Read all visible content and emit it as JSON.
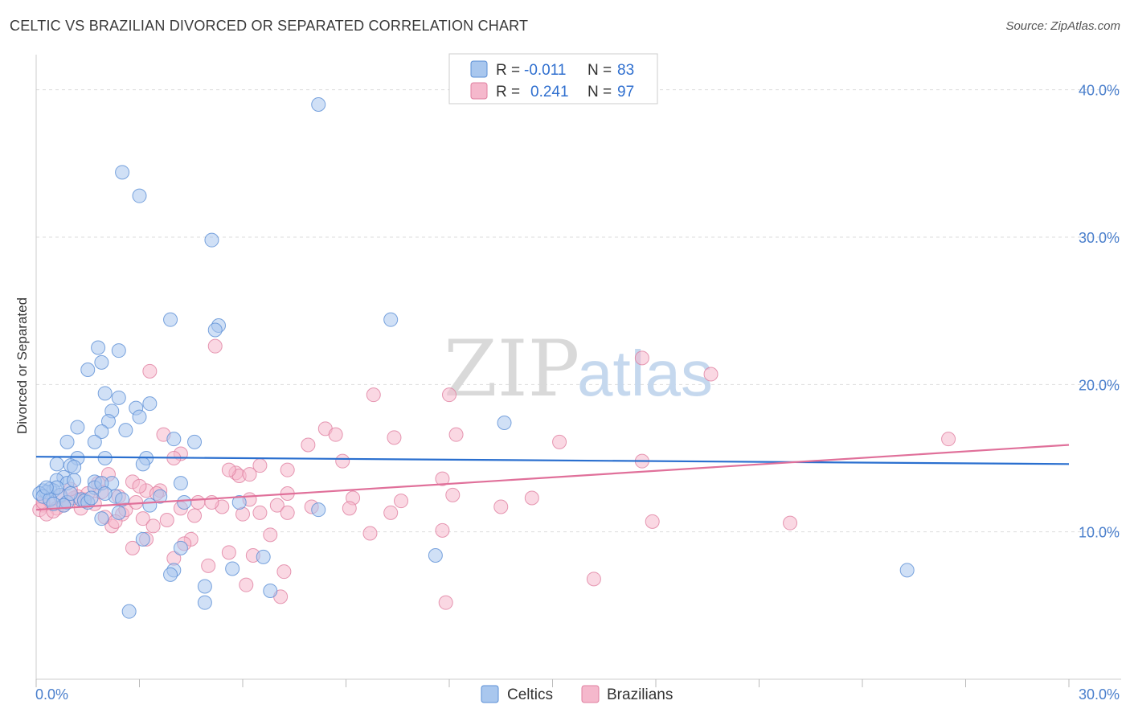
{
  "title": "CELTIC VS BRAZILIAN DIVORCED OR SEPARATED CORRELATION CHART",
  "source": "Source: ZipAtlas.com",
  "watermark": {
    "zip": "ZIP",
    "atlas": "atlas"
  },
  "colors": {
    "celtics_fill": "#a9c7ee",
    "celtics_stroke": "#5b8fd6",
    "celtics_line": "#2a6fcf",
    "brazilians_fill": "#f5b8cc",
    "brazilians_stroke": "#e07fa0",
    "brazilians_line": "#e0709a",
    "tick_label": "#4a7fcc",
    "grid": "#dddddd"
  },
  "stats_legend": {
    "rows": [
      {
        "r_label": "R =",
        "r_value": "-0.011",
        "n_label": "N =",
        "n_value": "83"
      },
      {
        "r_label": "R =",
        "r_value": "0.241",
        "n_label": "N =",
        "n_value": "97"
      }
    ]
  },
  "chart_data": {
    "type": "scatter",
    "title": "CELTIC VS BRAZILIAN DIVORCED OR SEPARATED CORRELATION CHART",
    "xlabel": "",
    "ylabel": "Divorced or Separated",
    "xlim": [
      0,
      30
    ],
    "ylim": [
      0,
      42
    ],
    "x_tick_labels": [
      "0.0%",
      "30.0%"
    ],
    "y_ticks": [
      10,
      20,
      30,
      40
    ],
    "y_tick_labels": [
      "10.0%",
      "20.0%",
      "30.0%",
      "40.0%"
    ],
    "grid": "horizontal dashed",
    "legend": "bottom-center",
    "series": [
      {
        "name": "Celtics",
        "trend": [
          [
            0,
            15.1
          ],
          [
            30,
            14.6
          ]
        ],
        "points": [
          [
            8.2,
            39.0
          ],
          [
            2.5,
            34.4
          ],
          [
            3.0,
            32.8
          ],
          [
            5.1,
            29.8
          ],
          [
            3.9,
            24.4
          ],
          [
            10.3,
            24.4
          ],
          [
            5.3,
            24.0
          ],
          [
            5.2,
            23.7
          ],
          [
            1.8,
            22.5
          ],
          [
            2.4,
            22.3
          ],
          [
            1.9,
            21.5
          ],
          [
            1.5,
            21.0
          ],
          [
            2.0,
            19.4
          ],
          [
            2.4,
            19.1
          ],
          [
            2.2,
            18.2
          ],
          [
            3.3,
            18.7
          ],
          [
            2.9,
            18.4
          ],
          [
            3.0,
            17.8
          ],
          [
            2.1,
            17.5
          ],
          [
            1.2,
            17.1
          ],
          [
            2.6,
            16.9
          ],
          [
            1.9,
            16.8
          ],
          [
            4.0,
            16.3
          ],
          [
            4.6,
            16.1
          ],
          [
            1.7,
            16.1
          ],
          [
            0.9,
            16.1
          ],
          [
            13.6,
            17.4
          ],
          [
            1.2,
            15.0
          ],
          [
            2.0,
            15.0
          ],
          [
            3.2,
            15.0
          ],
          [
            3.1,
            14.6
          ],
          [
            0.6,
            14.6
          ],
          [
            1.0,
            14.5
          ],
          [
            1.1,
            14.4
          ],
          [
            0.8,
            13.7
          ],
          [
            0.6,
            13.5
          ],
          [
            0.9,
            13.3
          ],
          [
            1.7,
            13.4
          ],
          [
            2.2,
            13.3
          ],
          [
            1.7,
            13.0
          ],
          [
            4.2,
            13.3
          ],
          [
            1.9,
            13.3
          ],
          [
            0.4,
            12.9
          ],
          [
            0.2,
            12.8
          ],
          [
            0.5,
            12.8
          ],
          [
            0.3,
            12.7
          ],
          [
            0.1,
            12.6
          ],
          [
            0.7,
            12.5
          ],
          [
            1.3,
            12.2
          ],
          [
            3.6,
            12.4
          ],
          [
            2.3,
            12.4
          ],
          [
            0.9,
            12.0
          ],
          [
            1.4,
            12.1
          ],
          [
            0.8,
            11.8
          ],
          [
            4.3,
            12.0
          ],
          [
            5.9,
            12.0
          ],
          [
            3.3,
            11.8
          ],
          [
            8.2,
            11.5
          ],
          [
            2.4,
            11.3
          ],
          [
            1.9,
            10.9
          ],
          [
            3.1,
            9.5
          ],
          [
            4.2,
            8.9
          ],
          [
            6.6,
            8.3
          ],
          [
            11.6,
            8.4
          ],
          [
            4.0,
            7.4
          ],
          [
            3.9,
            7.1
          ],
          [
            5.7,
            7.5
          ],
          [
            4.9,
            6.3
          ],
          [
            6.8,
            6.0
          ],
          [
            4.9,
            5.2
          ],
          [
            2.7,
            4.6
          ],
          [
            25.3,
            7.4
          ],
          [
            0.2,
            12.4
          ],
          [
            0.4,
            12.2
          ],
          [
            1.0,
            12.6
          ],
          [
            1.5,
            12.0
          ],
          [
            2.5,
            12.2
          ],
          [
            0.6,
            13.0
          ],
          [
            0.3,
            13.0
          ],
          [
            1.1,
            13.5
          ],
          [
            2.0,
            12.6
          ],
          [
            0.5,
            11.9
          ],
          [
            1.6,
            12.3
          ]
        ]
      },
      {
        "name": "Brazilians",
        "trend": [
          [
            0,
            11.5
          ],
          [
            30,
            15.9
          ]
        ],
        "points": [
          [
            17.6,
            21.8
          ],
          [
            19.6,
            20.7
          ],
          [
            5.2,
            22.6
          ],
          [
            3.3,
            20.9
          ],
          [
            9.8,
            19.3
          ],
          [
            12.0,
            19.3
          ],
          [
            8.4,
            17.0
          ],
          [
            8.7,
            16.6
          ],
          [
            10.4,
            16.4
          ],
          [
            12.2,
            16.6
          ],
          [
            15.2,
            16.1
          ],
          [
            26.5,
            16.3
          ],
          [
            7.9,
            15.9
          ],
          [
            3.7,
            16.6
          ],
          [
            4.2,
            15.3
          ],
          [
            4.0,
            15.0
          ],
          [
            8.9,
            14.8
          ],
          [
            17.6,
            14.8
          ],
          [
            5.8,
            14.0
          ],
          [
            6.5,
            14.5
          ],
          [
            7.3,
            14.2
          ],
          [
            5.9,
            13.8
          ],
          [
            6.2,
            13.9
          ],
          [
            11.8,
            13.6
          ],
          [
            2.8,
            13.4
          ],
          [
            3.2,
            12.8
          ],
          [
            3.6,
            12.8
          ],
          [
            1.8,
            13.3
          ],
          [
            2.1,
            13.9
          ],
          [
            7.3,
            12.6
          ],
          [
            9.2,
            12.3
          ],
          [
            10.6,
            12.1
          ],
          [
            12.1,
            12.5
          ],
          [
            14.4,
            12.3
          ],
          [
            6.2,
            12.2
          ],
          [
            4.7,
            12.0
          ],
          [
            7.0,
            11.8
          ],
          [
            9.1,
            11.6
          ],
          [
            5.4,
            11.7
          ],
          [
            10.3,
            11.3
          ],
          [
            13.5,
            11.7
          ],
          [
            4.2,
            11.6
          ],
          [
            1.4,
            12.2
          ],
          [
            1.2,
            12.4
          ],
          [
            0.9,
            12.0
          ],
          [
            0.4,
            12.1
          ],
          [
            0.2,
            11.8
          ],
          [
            0.6,
            11.6
          ],
          [
            0.1,
            11.5
          ],
          [
            0.8,
            11.8
          ],
          [
            1.1,
            12.3
          ],
          [
            1.7,
            11.9
          ],
          [
            2.5,
            11.2
          ],
          [
            2.0,
            11.0
          ],
          [
            2.2,
            10.4
          ],
          [
            3.1,
            10.9
          ],
          [
            3.8,
            10.8
          ],
          [
            3.4,
            10.4
          ],
          [
            6.5,
            11.3
          ],
          [
            7.3,
            11.3
          ],
          [
            4.5,
            9.5
          ],
          [
            4.3,
            9.2
          ],
          [
            6.8,
            9.8
          ],
          [
            9.7,
            9.9
          ],
          [
            11.8,
            10.1
          ],
          [
            17.9,
            10.7
          ],
          [
            21.9,
            10.6
          ],
          [
            3.2,
            9.5
          ],
          [
            2.8,
            8.9
          ],
          [
            5.6,
            8.6
          ],
          [
            6.3,
            8.4
          ],
          [
            4.0,
            8.2
          ],
          [
            5.0,
            7.7
          ],
          [
            7.2,
            7.3
          ],
          [
            6.1,
            6.4
          ],
          [
            16.2,
            6.8
          ],
          [
            7.1,
            5.6
          ],
          [
            11.9,
            5.2
          ],
          [
            0.3,
            11.2
          ],
          [
            0.5,
            11.4
          ],
          [
            1.5,
            12.6
          ],
          [
            2.4,
            12.4
          ],
          [
            2.6,
            11.5
          ],
          [
            1.0,
            12.9
          ],
          [
            3.0,
            13.1
          ],
          [
            5.1,
            12.0
          ],
          [
            0.7,
            12.4
          ],
          [
            1.9,
            12.7
          ],
          [
            0.2,
            12.0
          ],
          [
            2.9,
            12.0
          ],
          [
            3.5,
            12.6
          ],
          [
            4.6,
            11.1
          ],
          [
            8.0,
            11.7
          ],
          [
            5.6,
            14.2
          ],
          [
            6.0,
            11.2
          ],
          [
            1.3,
            11.6
          ],
          [
            2.3,
            10.7
          ]
        ]
      }
    ]
  },
  "bottom_legend": [
    {
      "label": "Celtics"
    },
    {
      "label": "Brazilians"
    }
  ]
}
